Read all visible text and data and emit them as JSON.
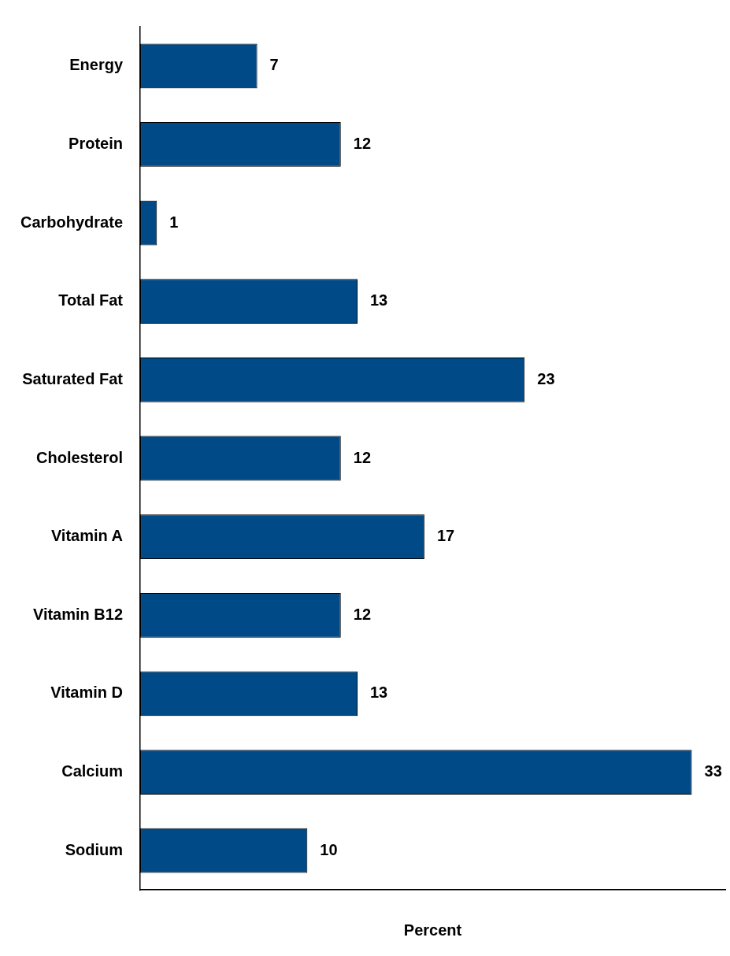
{
  "chart_data": {
    "type": "bar",
    "orientation": "horizontal",
    "xlabel": "Percent",
    "categories": [
      "Energy",
      "Protein",
      "Carbohydrate",
      "Total Fat",
      "Saturated Fat",
      "Cholesterol",
      "Vitamin A",
      "Vitamin B12",
      "Vitamin D",
      "Calcium",
      "Sodium"
    ],
    "values": [
      7,
      12,
      1,
      13,
      23,
      12,
      17,
      12,
      13,
      33,
      10
    ],
    "color": "#004a87",
    "xlim": [
      0,
      35
    ],
    "data_labels": true,
    "grid": false,
    "legend": false,
    "tick_labels": "y"
  }
}
